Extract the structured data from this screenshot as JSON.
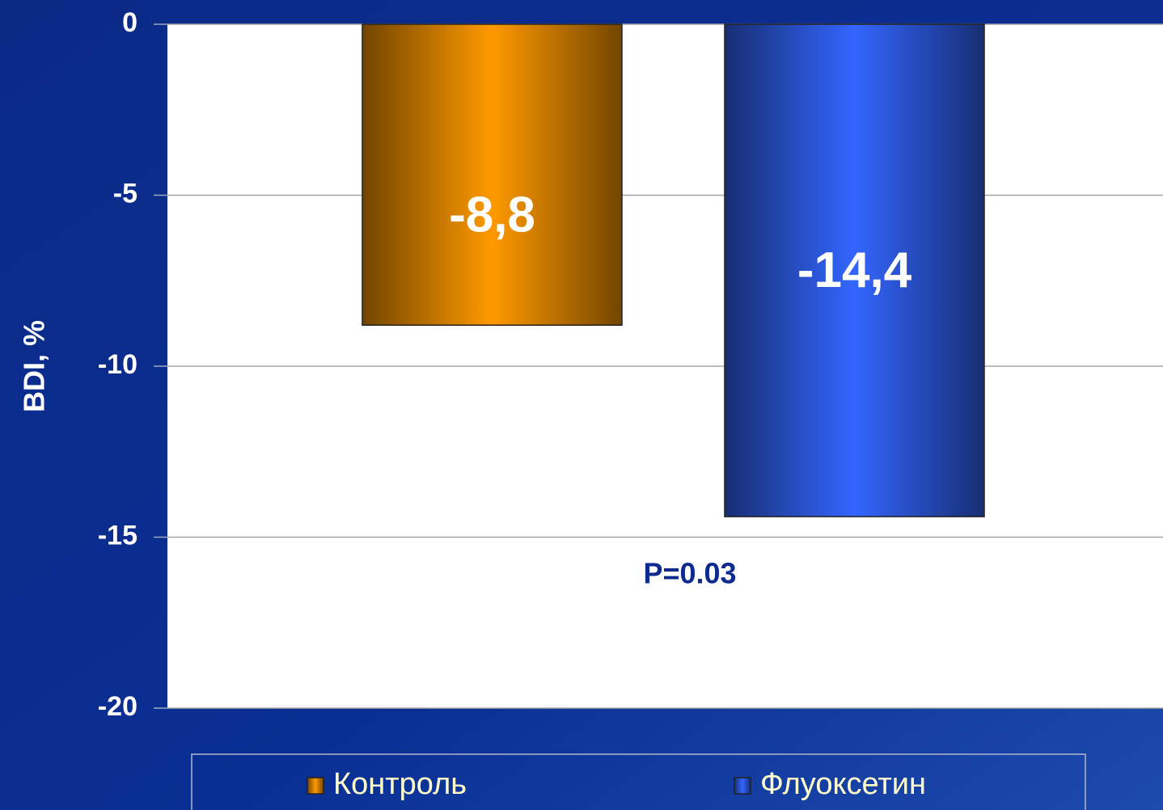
{
  "chart_data": {
    "type": "bar",
    "y_label": "BDI, %",
    "annotation": "P=0.03",
    "categories": [
      null
    ],
    "series": [
      {
        "name": "Контроль",
        "color": "#ff9900",
        "values": [
          -8.8
        ],
        "value_labels": [
          "-8,8"
        ]
      },
      {
        "name": "Флуоксетин",
        "color": "#3366ff",
        "values": [
          -14.4
        ],
        "value_labels": [
          "-14,4"
        ]
      }
    ],
    "ylim": [
      -20,
      0
    ],
    "yticks": [
      0,
      -5,
      -10,
      -15,
      -20
    ],
    "grid": true,
    "legend": "bottom"
  }
}
